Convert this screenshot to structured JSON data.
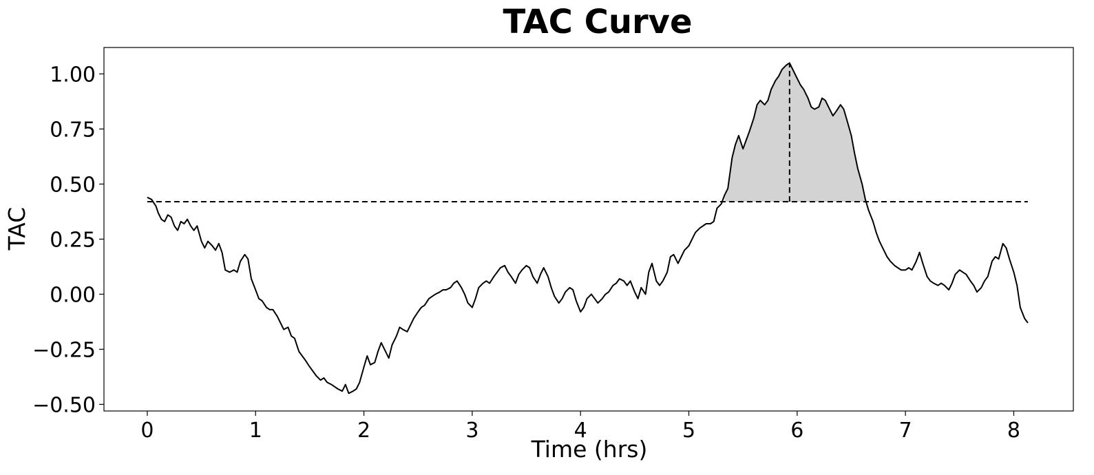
{
  "chart_data": {
    "type": "line",
    "title": "TAC Curve",
    "xlabel": "Time (hrs)",
    "ylabel": "TAC",
    "xlim": [
      -0.4,
      8.55
    ],
    "ylim": [
      -0.53,
      1.12
    ],
    "x_ticks": [
      0,
      1,
      2,
      3,
      4,
      5,
      6,
      7,
      8
    ],
    "x_tick_labels": [
      "0",
      "1",
      "2",
      "3",
      "4",
      "5",
      "6",
      "7",
      "8"
    ],
    "y_ticks": [
      -0.5,
      -0.25,
      0.0,
      0.25,
      0.5,
      0.75,
      1.0
    ],
    "y_tick_labels": [
      "−0.50",
      "−0.25",
      "0.00",
      "0.25",
      "0.50",
      "0.75",
      "1.00"
    ],
    "grid": false,
    "series": [
      {
        "color": "#000000",
        "points": [
          [
            0.0,
            0.44
          ],
          [
            0.04,
            0.43
          ],
          [
            0.08,
            0.4
          ],
          [
            0.1,
            0.37
          ],
          [
            0.13,
            0.34
          ],
          [
            0.16,
            0.33
          ],
          [
            0.19,
            0.36
          ],
          [
            0.22,
            0.35
          ],
          [
            0.25,
            0.31
          ],
          [
            0.28,
            0.29
          ],
          [
            0.31,
            0.33
          ],
          [
            0.34,
            0.32
          ],
          [
            0.37,
            0.34
          ],
          [
            0.4,
            0.31
          ],
          [
            0.43,
            0.29
          ],
          [
            0.46,
            0.31
          ],
          [
            0.5,
            0.24
          ],
          [
            0.53,
            0.21
          ],
          [
            0.56,
            0.24
          ],
          [
            0.6,
            0.22
          ],
          [
            0.63,
            0.2
          ],
          [
            0.66,
            0.23
          ],
          [
            0.69,
            0.19
          ],
          [
            0.72,
            0.11
          ],
          [
            0.76,
            0.1
          ],
          [
            0.8,
            0.11
          ],
          [
            0.83,
            0.1
          ],
          [
            0.86,
            0.15
          ],
          [
            0.9,
            0.18
          ],
          [
            0.93,
            0.16
          ],
          [
            0.96,
            0.07
          ],
          [
            1.0,
            0.02
          ],
          [
            1.03,
            -0.02
          ],
          [
            1.06,
            -0.03
          ],
          [
            1.1,
            -0.06
          ],
          [
            1.13,
            -0.07
          ],
          [
            1.16,
            -0.07
          ],
          [
            1.2,
            -0.1
          ],
          [
            1.23,
            -0.13
          ],
          [
            1.26,
            -0.16
          ],
          [
            1.3,
            -0.15
          ],
          [
            1.33,
            -0.19
          ],
          [
            1.36,
            -0.2
          ],
          [
            1.4,
            -0.26
          ],
          [
            1.43,
            -0.28
          ],
          [
            1.46,
            -0.3
          ],
          [
            1.5,
            -0.33
          ],
          [
            1.53,
            -0.35
          ],
          [
            1.56,
            -0.37
          ],
          [
            1.6,
            -0.39
          ],
          [
            1.63,
            -0.38
          ],
          [
            1.66,
            -0.4
          ],
          [
            1.7,
            -0.41
          ],
          [
            1.73,
            -0.42
          ],
          [
            1.76,
            -0.43
          ],
          [
            1.8,
            -0.44
          ],
          [
            1.83,
            -0.41
          ],
          [
            1.86,
            -0.45
          ],
          [
            1.9,
            -0.44
          ],
          [
            1.93,
            -0.43
          ],
          [
            1.96,
            -0.4
          ],
          [
            2.0,
            -0.33
          ],
          [
            2.03,
            -0.28
          ],
          [
            2.06,
            -0.32
          ],
          [
            2.1,
            -0.31
          ],
          [
            2.13,
            -0.26
          ],
          [
            2.16,
            -0.22
          ],
          [
            2.2,
            -0.26
          ],
          [
            2.23,
            -0.29
          ],
          [
            2.26,
            -0.23
          ],
          [
            2.3,
            -0.19
          ],
          [
            2.33,
            -0.15
          ],
          [
            2.36,
            -0.16
          ],
          [
            2.4,
            -0.17
          ],
          [
            2.43,
            -0.14
          ],
          [
            2.46,
            -0.11
          ],
          [
            2.5,
            -0.08
          ],
          [
            2.53,
            -0.06
          ],
          [
            2.56,
            -0.05
          ],
          [
            2.6,
            -0.02
          ],
          [
            2.63,
            -0.01
          ],
          [
            2.66,
            0.0
          ],
          [
            2.7,
            0.01
          ],
          [
            2.73,
            0.02
          ],
          [
            2.76,
            0.02
          ],
          [
            2.8,
            0.03
          ],
          [
            2.83,
            0.05
          ],
          [
            2.86,
            0.06
          ],
          [
            2.9,
            0.03
          ],
          [
            2.93,
            0.0
          ],
          [
            2.96,
            -0.04
          ],
          [
            3.0,
            -0.06
          ],
          [
            3.03,
            -0.02
          ],
          [
            3.06,
            0.03
          ],
          [
            3.1,
            0.05
          ],
          [
            3.13,
            0.06
          ],
          [
            3.16,
            0.05
          ],
          [
            3.2,
            0.08
          ],
          [
            3.23,
            0.1
          ],
          [
            3.26,
            0.12
          ],
          [
            3.3,
            0.13
          ],
          [
            3.33,
            0.1
          ],
          [
            3.36,
            0.08
          ],
          [
            3.4,
            0.05
          ],
          [
            3.43,
            0.09
          ],
          [
            3.46,
            0.11
          ],
          [
            3.5,
            0.13
          ],
          [
            3.53,
            0.12
          ],
          [
            3.56,
            0.08
          ],
          [
            3.6,
            0.05
          ],
          [
            3.63,
            0.09
          ],
          [
            3.66,
            0.12
          ],
          [
            3.7,
            0.08
          ],
          [
            3.73,
            0.03
          ],
          [
            3.76,
            -0.01
          ],
          [
            3.8,
            -0.04
          ],
          [
            3.83,
            -0.02
          ],
          [
            3.86,
            0.01
          ],
          [
            3.9,
            0.03
          ],
          [
            3.93,
            0.02
          ],
          [
            3.96,
            -0.03
          ],
          [
            4.0,
            -0.08
          ],
          [
            4.03,
            -0.06
          ],
          [
            4.06,
            -0.02
          ],
          [
            4.1,
            0.0
          ],
          [
            4.13,
            -0.02
          ],
          [
            4.16,
            -0.04
          ],
          [
            4.2,
            -0.02
          ],
          [
            4.23,
            0.0
          ],
          [
            4.26,
            0.01
          ],
          [
            4.3,
            0.04
          ],
          [
            4.33,
            0.05
          ],
          [
            4.36,
            0.07
          ],
          [
            4.4,
            0.06
          ],
          [
            4.43,
            0.04
          ],
          [
            4.46,
            0.06
          ],
          [
            4.5,
            0.01
          ],
          [
            4.53,
            -0.02
          ],
          [
            4.56,
            0.03
          ],
          [
            4.6,
            0.0
          ],
          [
            4.63,
            0.1
          ],
          [
            4.66,
            0.14
          ],
          [
            4.7,
            0.06
          ],
          [
            4.73,
            0.04
          ],
          [
            4.76,
            0.06
          ],
          [
            4.8,
            0.1
          ],
          [
            4.83,
            0.17
          ],
          [
            4.86,
            0.18
          ],
          [
            4.9,
            0.14
          ],
          [
            4.93,
            0.17
          ],
          [
            4.96,
            0.2
          ],
          [
            5.0,
            0.22
          ],
          [
            5.03,
            0.25
          ],
          [
            5.06,
            0.28
          ],
          [
            5.1,
            0.3
          ],
          [
            5.13,
            0.31
          ],
          [
            5.16,
            0.32
          ],
          [
            5.2,
            0.32
          ],
          [
            5.23,
            0.33
          ],
          [
            5.26,
            0.39
          ],
          [
            5.3,
            0.41
          ],
          [
            5.33,
            0.45
          ],
          [
            5.36,
            0.48
          ],
          [
            5.4,
            0.62
          ],
          [
            5.43,
            0.68
          ],
          [
            5.46,
            0.72
          ],
          [
            5.5,
            0.66
          ],
          [
            5.53,
            0.7
          ],
          [
            5.56,
            0.74
          ],
          [
            5.6,
            0.8
          ],
          [
            5.63,
            0.86
          ],
          [
            5.66,
            0.88
          ],
          [
            5.7,
            0.86
          ],
          [
            5.73,
            0.88
          ],
          [
            5.76,
            0.93
          ],
          [
            5.8,
            0.97
          ],
          [
            5.83,
            0.99
          ],
          [
            5.86,
            1.02
          ],
          [
            5.9,
            1.04
          ],
          [
            5.93,
            1.05
          ],
          [
            5.96,
            1.02
          ],
          [
            6.0,
            0.98
          ],
          [
            6.03,
            0.95
          ],
          [
            6.06,
            0.93
          ],
          [
            6.1,
            0.89
          ],
          [
            6.13,
            0.85
          ],
          [
            6.16,
            0.84
          ],
          [
            6.2,
            0.85
          ],
          [
            6.23,
            0.89
          ],
          [
            6.26,
            0.88
          ],
          [
            6.3,
            0.84
          ],
          [
            6.33,
            0.81
          ],
          [
            6.36,
            0.83
          ],
          [
            6.4,
            0.86
          ],
          [
            6.43,
            0.84
          ],
          [
            6.46,
            0.79
          ],
          [
            6.5,
            0.72
          ],
          [
            6.53,
            0.64
          ],
          [
            6.56,
            0.57
          ],
          [
            6.6,
            0.5
          ],
          [
            6.63,
            0.43
          ],
          [
            6.66,
            0.38
          ],
          [
            6.7,
            0.33
          ],
          [
            6.73,
            0.28
          ],
          [
            6.76,
            0.24
          ],
          [
            6.8,
            0.2
          ],
          [
            6.83,
            0.17
          ],
          [
            6.86,
            0.15
          ],
          [
            6.9,
            0.13
          ],
          [
            6.93,
            0.12
          ],
          [
            6.96,
            0.11
          ],
          [
            7.0,
            0.11
          ],
          [
            7.03,
            0.12
          ],
          [
            7.06,
            0.11
          ],
          [
            7.1,
            0.15
          ],
          [
            7.13,
            0.19
          ],
          [
            7.16,
            0.14
          ],
          [
            7.2,
            0.08
          ],
          [
            7.23,
            0.06
          ],
          [
            7.26,
            0.05
          ],
          [
            7.3,
            0.04
          ],
          [
            7.33,
            0.05
          ],
          [
            7.36,
            0.04
          ],
          [
            7.4,
            0.02
          ],
          [
            7.43,
            0.05
          ],
          [
            7.46,
            0.09
          ],
          [
            7.5,
            0.11
          ],
          [
            7.53,
            0.1
          ],
          [
            7.56,
            0.09
          ],
          [
            7.6,
            0.06
          ],
          [
            7.63,
            0.04
          ],
          [
            7.66,
            0.01
          ],
          [
            7.7,
            0.03
          ],
          [
            7.73,
            0.06
          ],
          [
            7.76,
            0.08
          ],
          [
            7.8,
            0.15
          ],
          [
            7.83,
            0.17
          ],
          [
            7.86,
            0.16
          ],
          [
            7.9,
            0.23
          ],
          [
            7.93,
            0.21
          ],
          [
            7.96,
            0.16
          ],
          [
            8.0,
            0.1
          ],
          [
            8.03,
            0.04
          ],
          [
            8.06,
            -0.06
          ],
          [
            8.1,
            -0.11
          ],
          [
            8.13,
            -0.13
          ]
        ]
      }
    ],
    "threshold": {
      "y": 0.42,
      "x_start": 0.0,
      "x_end": 8.13,
      "style": "dashed",
      "color": "#000000"
    },
    "shaded_region": {
      "x_start": 5.33,
      "x_end": 6.63,
      "above_y": 0.42,
      "fill": "#d3d3d3"
    },
    "peak_marker": {
      "x": 5.93,
      "y_from": 0.42,
      "y_to": 1.05,
      "style": "dashed",
      "color": "#000000"
    }
  }
}
